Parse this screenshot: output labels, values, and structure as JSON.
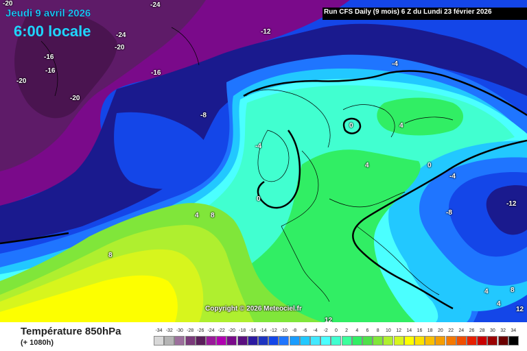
{
  "header": {
    "date": "Jeudi 9 avril 2026",
    "time": "6:00 locale",
    "run": "Run CFS Daily (9 mois) 6 Z du Lundi 23 février 2026"
  },
  "copyright": "Copyright © 2026 Meteociel.fr",
  "footer": {
    "title": "Température 850hPa",
    "subtitle": "(+ 1080h)"
  },
  "map_labels": [
    "-20",
    "-24",
    "-24",
    "-20",
    "-16",
    "-16",
    "-20",
    "-20",
    "-16",
    "-12",
    "-8",
    "-4",
    "4",
    "0",
    "-4",
    "4",
    "0",
    "-4",
    "0",
    "-12",
    "-8",
    "4",
    "8",
    "8",
    "12",
    "4",
    "8",
    "12",
    "4"
  ],
  "legend": {
    "ticks": [
      "-34",
      "-32",
      "-30",
      "-28",
      "-26",
      "-24",
      "-22",
      "-20",
      "-18",
      "-16",
      "-14",
      "-12",
      "-10",
      "-8",
      "-6",
      "-4",
      "-2",
      "0",
      "2",
      "4",
      "6",
      "8",
      "10",
      "12",
      "14",
      "16",
      "18",
      "20",
      "22",
      "24",
      "26",
      "28",
      "30",
      "32",
      "34"
    ],
    "colors": [
      "#d8d8d8",
      "#b4b4b4",
      "#9c6f9c",
      "#7a3a7a",
      "#5a1e5a",
      "#9a1a9a",
      "#b000b0",
      "#7a0a8a",
      "#5a0f7f",
      "#2c1aa0",
      "#1e34c0",
      "#1446e8",
      "#1f75ff",
      "#1a9cff",
      "#22c8ff",
      "#42e8ff",
      "#4bffff",
      "#41ffd0",
      "#3cff9c",
      "#31ee64",
      "#4ee04a",
      "#80e63a",
      "#afef2f",
      "#d7f51d",
      "#fdff00",
      "#fce200",
      "#fabf00",
      "#f59d00",
      "#f47800",
      "#f04e00",
      "#e62000",
      "#c80000",
      "#9a0000",
      "#6a0000",
      "#000000"
    ]
  },
  "colors": {
    "violet_deep": "#5e1b68",
    "violet": "#7a0a8a",
    "navy": "#1a1a8e",
    "blue": "#1446e8",
    "mid_blue": "#1f75ff",
    "sky": "#22c8ff",
    "cyan": "#4bffff",
    "mint": "#41ffd0",
    "green": "#31ee64",
    "lime": "#afef2f",
    "yellow": "#fdff00",
    "contour": "#000000"
  }
}
